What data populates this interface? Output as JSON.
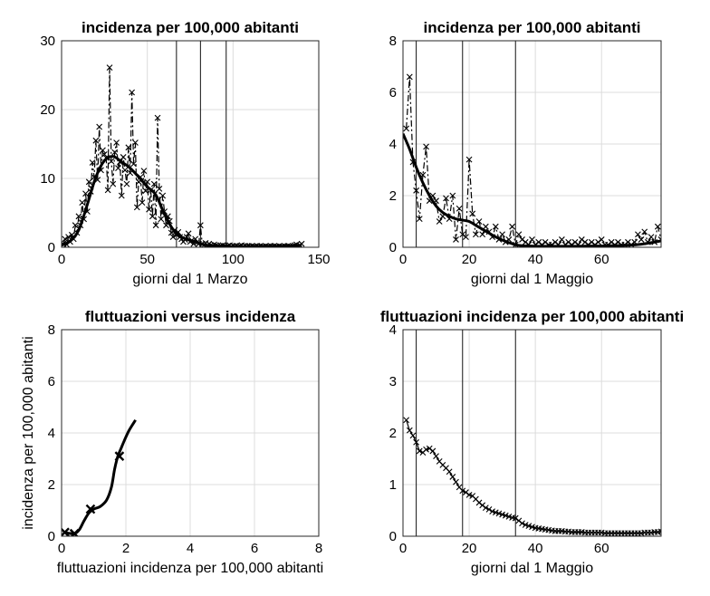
{
  "chart_data": [
    {
      "type": "line",
      "title": "incidenza per 100,000 abitanti",
      "xlabel": "giorni dal 1 Marzo",
      "ylabel": "",
      "xlim": [
        0,
        150
      ],
      "ylim": [
        0,
        30
      ],
      "xticks": [
        0,
        50,
        100,
        150
      ],
      "yticks": [
        0,
        10,
        20,
        30
      ],
      "grid": true,
      "vlines": [
        67,
        81,
        96
      ],
      "series": [
        {
          "style": "dashed-with-x-markers",
          "x": [
            1,
            2,
            3,
            4,
            5,
            6,
            7,
            8,
            9,
            10,
            11,
            12,
            13,
            14,
            15,
            16,
            17,
            18,
            19,
            20,
            21,
            22,
            23,
            24,
            25,
            26,
            27,
            28,
            29,
            30,
            31,
            32,
            33,
            34,
            35,
            36,
            37,
            38,
            39,
            40,
            41,
            42,
            43,
            44,
            45,
            46,
            47,
            48,
            49,
            50,
            51,
            52,
            53,
            54,
            55,
            56,
            57,
            58,
            59,
            60,
            61,
            62,
            63,
            64,
            65,
            66,
            67,
            68,
            69,
            70,
            71,
            72,
            73,
            74,
            75,
            76,
            77,
            78,
            79,
            80,
            81,
            82,
            83,
            84,
            85,
            86,
            87,
            88,
            89,
            90,
            91,
            92,
            93,
            94,
            95,
            96,
            97,
            98,
            99,
            100,
            101,
            102,
            103,
            104,
            105,
            106,
            107,
            108,
            109,
            110,
            111,
            112,
            113,
            114,
            115,
            116,
            117,
            118,
            119,
            120,
            121,
            122,
            123,
            124,
            125,
            126,
            127,
            128,
            129,
            130,
            131,
            132,
            133,
            134,
            135,
            136,
            137,
            138,
            139,
            140
          ],
          "values": [
            0.5,
            1.2,
            0.4,
            1.5,
            0.8,
            1.8,
            1.2,
            3.2,
            2.1,
            4.5,
            3.2,
            6.5,
            4.1,
            7.8,
            5.2,
            9.5,
            8.1,
            12.3,
            10.2,
            15.5,
            9.8,
            17.5,
            11.2,
            14.1,
            13.5,
            13.0,
            8.3,
            26.1,
            12.5,
            9.2,
            13.8,
            15.2,
            11.5,
            12.4,
            7.5,
            13.1,
            11.2,
            9.2,
            14.5,
            10.8,
            22.5,
            12.1,
            15.2,
            5.8,
            9.5,
            10.2,
            6.5,
            11.1,
            8.2,
            9.5,
            5.5,
            8.3,
            4.5,
            9.2,
            3.2,
            18.8,
            8.5,
            4.1,
            7.5,
            5.2,
            3.2,
            4.5,
            3.8,
            2.1,
            1.5,
            2.5,
            1.8,
            2.2,
            1.5,
            1.2,
            0.8,
            1.1,
            1.5,
            2.0,
            0.8,
            1.0,
            0.5,
            1.2,
            0.7,
            0.5,
            3.2,
            0.5,
            0.3,
            0.6,
            0.2,
            0.5,
            0.3,
            0.2,
            0.4,
            0.3,
            0.2,
            0.1,
            0.2,
            0.3,
            0.2,
            0.1,
            0.2,
            0.3,
            0.1,
            0.2,
            0.1,
            0.2,
            0.1,
            0.2,
            0.3,
            0.1,
            0.2,
            0.1,
            0.2,
            0.1,
            0.2,
            0.1,
            0.1,
            0.2,
            0.1,
            0.2,
            0.1,
            0.1,
            0.2,
            0.1,
            0.1,
            0.2,
            0.1,
            0.2,
            0.1,
            0.1,
            0.2,
            0.1,
            0.1,
            0.2,
            0.1,
            0.2,
            0.1,
            0.1,
            0.2,
            0.3,
            0.4,
            0.1,
            0.3,
            0.5
          ]
        },
        {
          "style": "smooth-thick",
          "x": [
            0,
            5,
            10,
            15,
            20,
            25,
            30,
            35,
            40,
            45,
            50,
            55,
            60,
            65,
            70,
            75,
            80,
            85,
            90,
            95,
            100,
            105,
            110,
            115,
            120,
            125,
            130,
            135,
            140
          ],
          "values": [
            0.3,
            0.9,
            2.5,
            6.2,
            10.2,
            12.6,
            13.2,
            12.4,
            11.5,
            10.2,
            8.8,
            7.6,
            4.8,
            2.6,
            1.5,
            1.0,
            0.6,
            0.3,
            0.15,
            0.1,
            0.05,
            0.05,
            0.05,
            0.05,
            0.05,
            0.1,
            0.1,
            0.2,
            0.3
          ]
        }
      ]
    },
    {
      "type": "line",
      "title": "incidenza per 100,000 abitanti",
      "xlabel": "giorni dal 1 Maggio",
      "ylabel": "",
      "xlim": [
        0,
        78
      ],
      "ylim": [
        0,
        8
      ],
      "xticks": [
        0,
        20,
        40,
        60
      ],
      "yticks": [
        0,
        2,
        4,
        6,
        8
      ],
      "grid": true,
      "vlines": [
        4,
        18,
        34
      ],
      "series": [
        {
          "style": "dashed-with-x-markers",
          "x": [
            1,
            2,
            3,
            4,
            5,
            6,
            7,
            8,
            9,
            10,
            11,
            12,
            13,
            14,
            15,
            16,
            17,
            18,
            19,
            20,
            21,
            22,
            23,
            24,
            25,
            26,
            27,
            28,
            29,
            30,
            31,
            32,
            33,
            34,
            35,
            36,
            37,
            38,
            39,
            40,
            41,
            42,
            43,
            44,
            45,
            46,
            47,
            48,
            49,
            50,
            51,
            52,
            53,
            54,
            55,
            56,
            57,
            58,
            59,
            60,
            61,
            62,
            63,
            64,
            65,
            66,
            67,
            68,
            69,
            70,
            71,
            72,
            73,
            74,
            75,
            76,
            77,
            78
          ],
          "values": [
            4.6,
            6.6,
            3.3,
            2.2,
            1.1,
            2.8,
            3.9,
            1.8,
            2.0,
            1.8,
            1.0,
            1.2,
            1.9,
            1.1,
            2.0,
            0.3,
            1.5,
            0.5,
            0.4,
            3.4,
            1.3,
            0.5,
            1.0,
            0.5,
            0.8,
            0.6,
            0.4,
            0.8,
            0.3,
            0.5,
            0.2,
            0.3,
            0.8,
            0.1,
            0.5,
            0.3,
            0.2,
            0.1,
            0.3,
            0.1,
            0.2,
            0.1,
            0.2,
            0.1,
            0.1,
            0.2,
            0.1,
            0.3,
            0.1,
            0.2,
            0.1,
            0.2,
            0.1,
            0.3,
            0.2,
            0.1,
            0.2,
            0.1,
            0.2,
            0.3,
            0.1,
            0.1,
            0.2,
            0.1,
            0.2,
            0.1,
            0.1,
            0.2,
            0.1,
            0.2,
            0.5,
            0.3,
            0.6,
            0.2,
            0.4,
            0.2,
            0.8,
            0.3
          ]
        },
        {
          "style": "smooth-thick",
          "x": [
            0,
            2,
            4,
            6,
            8,
            10,
            12,
            14,
            16,
            18,
            20,
            22,
            24,
            26,
            28,
            30,
            32,
            34,
            36,
            38,
            40,
            44,
            48,
            52,
            56,
            60,
            64,
            68,
            72,
            76,
            78
          ],
          "values": [
            4.4,
            3.8,
            3.1,
            2.5,
            2.0,
            1.6,
            1.35,
            1.2,
            1.1,
            1.05,
            1.0,
            0.85,
            0.7,
            0.55,
            0.4,
            0.28,
            0.18,
            0.1,
            0.06,
            0.05,
            0.04,
            0.04,
            0.04,
            0.04,
            0.05,
            0.05,
            0.06,
            0.08,
            0.12,
            0.2,
            0.25
          ]
        }
      ]
    },
    {
      "type": "line",
      "title": "fluttuazioni versus incidenza",
      "xlabel": "fluttuazioni incidenza per 100,000 abitanti",
      "ylabel": "incidenza per 100,000 abitanti",
      "xlim": [
        0,
        8
      ],
      "ylim": [
        0,
        8
      ],
      "xticks": [
        0,
        2,
        4,
        6,
        8
      ],
      "yticks": [
        0,
        2,
        4,
        6,
        8
      ],
      "grid": true,
      "vlines": [],
      "series": [
        {
          "style": "smooth-thick",
          "x": [
            0.05,
            0.2,
            0.4,
            0.55,
            0.7,
            0.85,
            1.0,
            1.2,
            1.4,
            1.55,
            1.65,
            1.75,
            1.85,
            1.95,
            2.1,
            2.3
          ],
          "values": [
            0.15,
            0.12,
            0.1,
            0.25,
            0.6,
            0.9,
            1.05,
            1.15,
            1.4,
            1.9,
            2.6,
            3.1,
            3.4,
            3.7,
            4.1,
            4.5
          ]
        },
        {
          "style": "x-markers",
          "x": [
            0.1,
            0.4,
            0.9,
            1.8
          ],
          "values": [
            0.15,
            0.1,
            1.05,
            3.1
          ]
        }
      ]
    },
    {
      "type": "line",
      "title": "fluttuazioni incidenza per 100,000 abitanti",
      "xlabel": "giorni dal 1 Maggio",
      "ylabel": "",
      "xlim": [
        0,
        78
      ],
      "ylim": [
        0,
        4
      ],
      "xticks": [
        0,
        20,
        40,
        60
      ],
      "yticks": [
        0,
        1,
        2,
        3,
        4
      ],
      "grid": true,
      "vlines": [
        4,
        18,
        34
      ],
      "series": [
        {
          "style": "solid-with-x-markers",
          "x": [
            1,
            2,
            3,
            4,
            5,
            6,
            7,
            8,
            9,
            10,
            11,
            12,
            13,
            14,
            15,
            16,
            17,
            18,
            19,
            20,
            21,
            22,
            23,
            24,
            25,
            26,
            27,
            28,
            29,
            30,
            31,
            32,
            33,
            34,
            35,
            36,
            37,
            38,
            39,
            40,
            41,
            42,
            43,
            44,
            45,
            46,
            47,
            48,
            49,
            50,
            51,
            52,
            53,
            54,
            55,
            56,
            57,
            58,
            59,
            60,
            61,
            62,
            63,
            64,
            65,
            66,
            67,
            68,
            69,
            70,
            71,
            72,
            73,
            74,
            75,
            76,
            77,
            78
          ],
          "values": [
            2.25,
            2.05,
            1.95,
            1.82,
            1.65,
            1.62,
            1.68,
            1.7,
            1.65,
            1.55,
            1.45,
            1.38,
            1.32,
            1.25,
            1.15,
            1.05,
            0.95,
            0.88,
            0.85,
            0.8,
            0.78,
            0.72,
            0.65,
            0.6,
            0.55,
            0.52,
            0.48,
            0.46,
            0.44,
            0.42,
            0.4,
            0.38,
            0.36,
            0.35,
            0.3,
            0.25,
            0.22,
            0.2,
            0.18,
            0.16,
            0.15,
            0.14,
            0.13,
            0.12,
            0.11,
            0.1,
            0.1,
            0.1,
            0.09,
            0.09,
            0.08,
            0.08,
            0.08,
            0.08,
            0.07,
            0.07,
            0.07,
            0.07,
            0.07,
            0.07,
            0.06,
            0.06,
            0.06,
            0.06,
            0.06,
            0.06,
            0.06,
            0.06,
            0.06,
            0.06,
            0.06,
            0.06,
            0.07,
            0.07,
            0.07,
            0.08,
            0.08,
            0.09
          ]
        }
      ]
    }
  ]
}
